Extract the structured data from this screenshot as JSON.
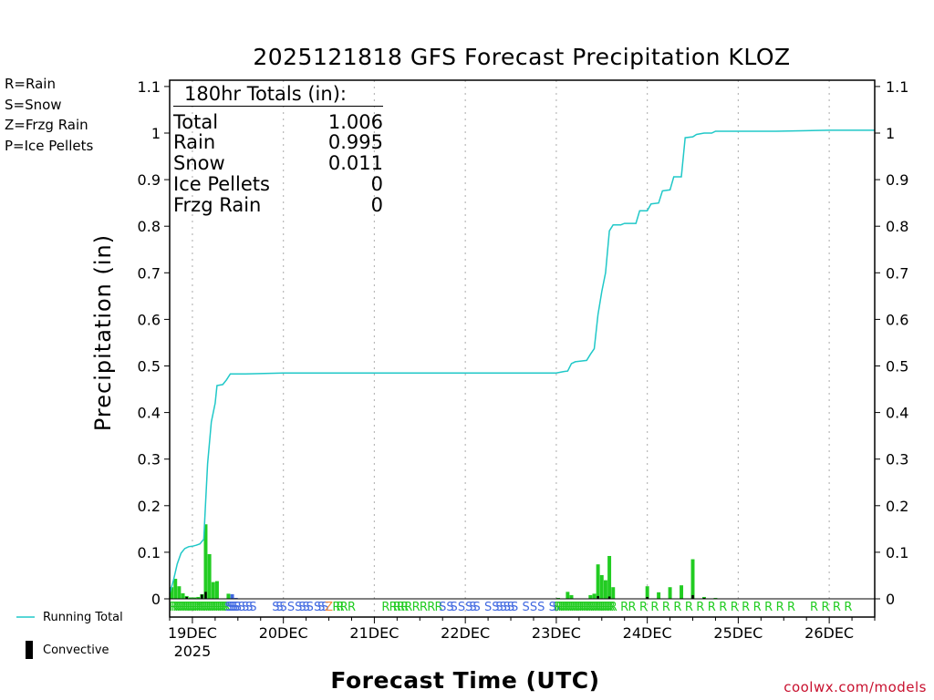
{
  "chart_data": {
    "type": "bar",
    "title": "2025121818 GFS Forecast Precipitation KLOZ",
    "xlabel": "Forecast Time (UTC)",
    "ylabel": "Precipitation (in)",
    "ylim": [
      0,
      1.1
    ],
    "yticks": [
      "0",
      "0.1",
      "0.2",
      "0.3",
      "0.4",
      "0.5",
      "0.6",
      "0.7",
      "0.8",
      "0.9",
      "1",
      "1.1"
    ],
    "x_unit": "hours since 2025-12-18 18Z",
    "xlim": [
      0,
      186
    ],
    "day_ticks": [
      {
        "hour": 6,
        "label": "19DEC"
      },
      {
        "hour": 30,
        "label": "20DEC"
      },
      {
        "hour": 54,
        "label": "21DEC"
      },
      {
        "hour": 78,
        "label": "22DEC"
      },
      {
        "hour": 102,
        "label": "23DEC"
      },
      {
        "hour": 126,
        "label": "24DEC"
      },
      {
        "hour": 150,
        "label": "25DEC"
      },
      {
        "hour": 174,
        "label": "26DEC"
      }
    ],
    "year_label": "2025",
    "legend_ptype": [
      {
        "code": "R=Rain",
        "color": "#22cc22"
      },
      {
        "code": "S=Snow",
        "color": "#4169e1"
      },
      {
        "code": "Z=Frzg Rain",
        "color": "#f08a3c"
      },
      {
        "code": "P=Ice Pellets",
        "color": "#e0187c"
      }
    ],
    "legend_series": [
      {
        "name": "Running Total",
        "color": "#20c8c8"
      },
      {
        "name": "Convective",
        "color": "#000000"
      }
    ],
    "totals": {
      "header": "180hr Totals (in):",
      "rows": [
        {
          "label": "Total",
          "value": "1.006"
        },
        {
          "label": "Rain",
          "value": "0.995"
        },
        {
          "label": "Snow",
          "value": "0.011"
        },
        {
          "label": "Ice Pellets",
          "value": "0"
        },
        {
          "label": "Frzg Rain",
          "value": "0"
        }
      ]
    },
    "bars": [
      {
        "hour": 0.5,
        "value": 0.025,
        "color": "#22cc22"
      },
      {
        "hour": 1.5,
        "value": 0.043,
        "color": "#22cc22"
      },
      {
        "hour": 2.5,
        "value": 0.027,
        "color": "#22cc22"
      },
      {
        "hour": 3.5,
        "value": 0.012,
        "color": "#22cc22"
      },
      {
        "hour": 4.5,
        "value": 0.006,
        "color": "#22cc22"
      },
      {
        "hour": 5.5,
        "value": 0.003,
        "color": "#22cc22"
      },
      {
        "hour": 6.5,
        "value": 0.003,
        "color": "#22cc22"
      },
      {
        "hour": 7.5,
        "value": 0.004,
        "color": "#22cc22"
      },
      {
        "hour": 8.5,
        "value": 0.01,
        "color": "#22cc22"
      },
      {
        "hour": 9.5,
        "value": 0.16,
        "color": "#22cc22"
      },
      {
        "hour": 10.5,
        "value": 0.096,
        "color": "#22cc22"
      },
      {
        "hour": 11.5,
        "value": 0.036,
        "color": "#22cc22"
      },
      {
        "hour": 12.5,
        "value": 0.038,
        "color": "#22cc22"
      },
      {
        "hour": 15.5,
        "value": 0.011,
        "color": "#22cc22"
      },
      {
        "hour": 16.5,
        "value": 0.01,
        "color": "#4169e1"
      },
      {
        "hour": 17.5,
        "value": 0.002,
        "color": "#4169e1"
      },
      {
        "hour": 102.5,
        "value": 0.002,
        "color": "#22cc22"
      },
      {
        "hour": 105,
        "value": 0.015,
        "color": "#22cc22"
      },
      {
        "hour": 106,
        "value": 0.008,
        "color": "#22cc22"
      },
      {
        "hour": 111,
        "value": 0.008,
        "color": "#22cc22"
      },
      {
        "hour": 112,
        "value": 0.011,
        "color": "#22cc22"
      },
      {
        "hour": 113,
        "value": 0.074,
        "color": "#22cc22"
      },
      {
        "hour": 114,
        "value": 0.051,
        "color": "#22cc22"
      },
      {
        "hour": 115,
        "value": 0.04,
        "color": "#22cc22"
      },
      {
        "hour": 116,
        "value": 0.092,
        "color": "#22cc22"
      },
      {
        "hour": 117,
        "value": 0.025,
        "color": "#22cc22"
      },
      {
        "hour": 126,
        "value": 0.027,
        "color": "#22cc22"
      },
      {
        "hour": 129,
        "value": 0.014,
        "color": "#22cc22"
      },
      {
        "hour": 132,
        "value": 0.025,
        "color": "#22cc22"
      },
      {
        "hour": 135,
        "value": 0.029,
        "color": "#22cc22"
      },
      {
        "hour": 138,
        "value": 0.085,
        "color": "#22cc22"
      },
      {
        "hour": 141,
        "value": 0.004,
        "color": "#22cc22"
      },
      {
        "hour": 144,
        "value": 0.002,
        "color": "#22cc22"
      }
    ],
    "convective": [
      {
        "hour": 4.5,
        "value": 0.004
      },
      {
        "hour": 8.5,
        "value": 0.009
      },
      {
        "hour": 9.5,
        "value": 0.015
      },
      {
        "hour": 113,
        "value": 0.006
      },
      {
        "hour": 116,
        "value": 0.005
      },
      {
        "hour": 126,
        "value": 0.004
      },
      {
        "hour": 138,
        "value": 0.008
      },
      {
        "hour": 141,
        "value": 0.002
      }
    ],
    "running_total": [
      [
        0,
        0.012
      ],
      [
        1,
        0.04
      ],
      [
        2,
        0.075
      ],
      [
        3,
        0.098
      ],
      [
        4,
        0.108
      ],
      [
        5,
        0.112
      ],
      [
        6,
        0.113
      ],
      [
        7,
        0.115
      ],
      [
        8,
        0.118
      ],
      [
        9,
        0.128
      ],
      [
        9.5,
        0.21
      ],
      [
        10,
        0.29
      ],
      [
        11,
        0.38
      ],
      [
        12,
        0.42
      ],
      [
        12.5,
        0.458
      ],
      [
        14,
        0.46
      ],
      [
        15,
        0.47
      ],
      [
        16,
        0.483
      ],
      [
        20,
        0.483
      ],
      [
        30,
        0.485
      ],
      [
        60,
        0.485
      ],
      [
        90,
        0.485
      ],
      [
        102,
        0.485
      ],
      [
        104,
        0.488
      ],
      [
        105,
        0.489
      ],
      [
        106,
        0.505
      ],
      [
        107,
        0.509
      ],
      [
        110,
        0.512
      ],
      [
        111,
        0.525
      ],
      [
        112,
        0.537
      ],
      [
        113,
        0.61
      ],
      [
        114,
        0.66
      ],
      [
        115,
        0.7
      ],
      [
        116,
        0.79
      ],
      [
        117,
        0.803
      ],
      [
        119,
        0.803
      ],
      [
        120,
        0.806
      ],
      [
        123,
        0.806
      ],
      [
        124,
        0.833
      ],
      [
        126,
        0.833
      ],
      [
        127,
        0.848
      ],
      [
        129,
        0.85
      ],
      [
        130,
        0.876
      ],
      [
        132,
        0.878
      ],
      [
        133,
        0.906
      ],
      [
        135,
        0.906
      ],
      [
        136,
        0.99
      ],
      [
        138,
        0.992
      ],
      [
        139,
        0.997
      ],
      [
        141,
        1.0
      ],
      [
        143,
        1.0
      ],
      [
        144,
        1.004
      ],
      [
        150,
        1.004
      ],
      [
        160,
        1.004
      ],
      [
        168,
        1.005
      ],
      [
        174,
        1.006
      ],
      [
        186,
        1.006
      ]
    ],
    "ptype_letters": {
      "hours": [
        1,
        1.5,
        2,
        2.5,
        3,
        3.5,
        4,
        4.5,
        5,
        5.5,
        6,
        6.5,
        7,
        7.5,
        8,
        8.5,
        9,
        9.5,
        10,
        10.5,
        11,
        11.5,
        12,
        12.5,
        13,
        13.5,
        14,
        14.5,
        15,
        15.5,
        16,
        16.5,
        17,
        17.5,
        18,
        19,
        20,
        21,
        22,
        28,
        29,
        30,
        32,
        34,
        35,
        36,
        37,
        39,
        40,
        41,
        42,
        44,
        45,
        46,
        48,
        57,
        59,
        60,
        61,
        62,
        63,
        65,
        67,
        69,
        71,
        72,
        74,
        75,
        77,
        79,
        80,
        81,
        84,
        86,
        87,
        88,
        89,
        90,
        91,
        94,
        96,
        98,
        101,
        102,
        102.5,
        103,
        103.5,
        104,
        104.5,
        105,
        105.5,
        106,
        106.5,
        107,
        107.5,
        108,
        108.5,
        109,
        109.5,
        110,
        110.5,
        111,
        111.5,
        112,
        112.5,
        113,
        113.5,
        114,
        114.5,
        115,
        115.5,
        116,
        116.5,
        117,
        120,
        122,
        125,
        128,
        131,
        134,
        137,
        140,
        143,
        146,
        149,
        152,
        155,
        158,
        161,
        164,
        170,
        173,
        176,
        179
      ],
      "codes": [
        "R",
        "R",
        "R",
        "R",
        "R",
        "R",
        "R",
        "R",
        "R",
        "R",
        "R",
        "R",
        "R",
        "R",
        "R",
        "R",
        "R",
        "R",
        "R",
        "R",
        "R",
        "R",
        "R",
        "R",
        "R",
        "R",
        "R",
        "R",
        "R",
        "S",
        "S",
        "S",
        "S",
        "S",
        "S",
        "S",
        "S",
        "S",
        "S",
        "S",
        "S",
        "S",
        "S",
        "S",
        "S",
        "S",
        "S",
        "S",
        "S",
        "S",
        "Z",
        "R",
        "R",
        "R",
        "R",
        "R",
        "R",
        "R",
        "R",
        "R",
        "R",
        "R",
        "R",
        "R",
        "R",
        "S",
        "S",
        "S",
        "S",
        "S",
        "S",
        "S",
        "S",
        "S",
        "S",
        "S",
        "S",
        "S",
        "S",
        "S",
        "S",
        "S",
        "S",
        "S",
        "R",
        "R",
        "R",
        "R",
        "R",
        "R",
        "R",
        "R",
        "R",
        "R",
        "R",
        "R",
        "R",
        "R",
        "R",
        "R",
        "R",
        "R",
        "R",
        "R",
        "R",
        "R",
        "R",
        "R",
        "R",
        "R",
        "R",
        "R",
        "R",
        "R",
        "R",
        "R",
        "R",
        "R",
        "R",
        "R",
        "R",
        "R",
        "R",
        "R",
        "R",
        "R",
        "R",
        "R",
        "R",
        "R",
        "R",
        "R",
        "R",
        "R",
        "R",
        "R"
      ]
    },
    "grid": "vertical-dotted",
    "credit": "coolwx.com/models"
  }
}
